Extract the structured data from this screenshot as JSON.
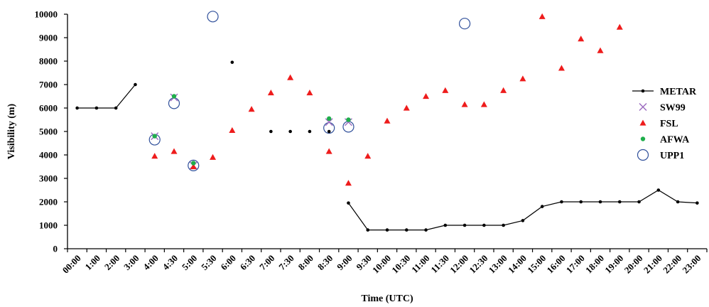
{
  "chart_data": {
    "type": "scatter",
    "xlabel": "Time (UTC)",
    "ylabel": "Visibility (m)",
    "ylim": [
      0,
      10000
    ],
    "yticks": [
      0,
      1000,
      2000,
      3000,
      4000,
      5000,
      6000,
      7000,
      8000,
      9000,
      10000
    ],
    "categories": [
      "00:00",
      "1:00",
      "2:00",
      "3:00",
      "4:00",
      "4:30",
      "5:00",
      "5:30",
      "6:00",
      "6:30",
      "7:00",
      "7:30",
      "8:00",
      "8:30",
      "9:00",
      "9:30",
      "10:00",
      "10:30",
      "11:00",
      "11:30",
      "12:00",
      "12:30",
      "13:00",
      "14:00",
      "15:00",
      "16:00",
      "17:00",
      "18:00",
      "19:00",
      "20:00",
      "21:00",
      "22:00",
      "23:00"
    ],
    "legend_position": "right",
    "grid": false,
    "series": [
      {
        "name": "METAR",
        "marker": "line-dot",
        "color": "#000000",
        "points": [
          {
            "x": 0,
            "y": 6000
          },
          {
            "x": 1,
            "y": 6000
          },
          {
            "x": 2,
            "y": 6000
          },
          {
            "x": 3,
            "y": 7000
          },
          {
            "x": 8,
            "y": 7950
          },
          {
            "x": 10,
            "y": 5000
          },
          {
            "x": 11,
            "y": 5000
          },
          {
            "x": 12,
            "y": 5000
          },
          {
            "x": 13,
            "y": 5000
          },
          {
            "x": 14,
            "y": 1950
          },
          {
            "x": 15,
            "y": 800
          },
          {
            "x": 16,
            "y": 800
          },
          {
            "x": 17,
            "y": 800
          },
          {
            "x": 18,
            "y": 800
          },
          {
            "x": 19,
            "y": 1000
          },
          {
            "x": 20,
            "y": 1000
          },
          {
            "x": 21,
            "y": 1000
          },
          {
            "x": 22,
            "y": 1000
          },
          {
            "x": 23,
            "y": 1200
          },
          {
            "x": 24,
            "y": 1800
          },
          {
            "x": 25,
            "y": 2000
          },
          {
            "x": 26,
            "y": 2000
          },
          {
            "x": 27,
            "y": 2000
          },
          {
            "x": 28,
            "y": 2000
          },
          {
            "x": 29,
            "y": 2000
          },
          {
            "x": 30,
            "y": 2500
          },
          {
            "x": 31,
            "y": 2000
          },
          {
            "x": 32,
            "y": 1950
          }
        ],
        "segments": [
          [
            0,
            3
          ],
          [
            9,
            27
          ]
        ]
      },
      {
        "name": "SW99",
        "marker": "x",
        "color": "#9b6bbf",
        "points": [
          {
            "x": 4,
            "y": 4800
          },
          {
            "x": 5,
            "y": 6450
          },
          {
            "x": 6,
            "y": 3550
          },
          {
            "x": 13,
            "y": 5400
          },
          {
            "x": 14,
            "y": 5400
          }
        ]
      },
      {
        "name": "FSL",
        "marker": "triangle",
        "color": "#ee1c1c",
        "points": [
          {
            "x": 4,
            "y": 3950
          },
          {
            "x": 5,
            "y": 4150
          },
          {
            "x": 6,
            "y": 3500
          },
          {
            "x": 7,
            "y": 3900
          },
          {
            "x": 8,
            "y": 5050
          },
          {
            "x": 9,
            "y": 5950
          },
          {
            "x": 10,
            "y": 6650
          },
          {
            "x": 11,
            "y": 7300
          },
          {
            "x": 12,
            "y": 6650
          },
          {
            "x": 13,
            "y": 4150
          },
          {
            "x": 14,
            "y": 2800
          },
          {
            "x": 15,
            "y": 3950
          },
          {
            "x": 16,
            "y": 5450
          },
          {
            "x": 17,
            "y": 6000
          },
          {
            "x": 18,
            "y": 6500
          },
          {
            "x": 19,
            "y": 6750
          },
          {
            "x": 20,
            "y": 6150
          },
          {
            "x": 21,
            "y": 6150
          },
          {
            "x": 22,
            "y": 6750
          },
          {
            "x": 23,
            "y": 7250
          },
          {
            "x": 24,
            "y": 9900
          },
          {
            "x": 25,
            "y": 7700
          },
          {
            "x": 26,
            "y": 8950
          },
          {
            "x": 27,
            "y": 8450
          },
          {
            "x": 28,
            "y": 9450
          }
        ]
      },
      {
        "name": "AFWA",
        "marker": "dot",
        "color": "#1fae4b",
        "points": [
          {
            "x": 4,
            "y": 4800
          },
          {
            "x": 5,
            "y": 6500
          },
          {
            "x": 6,
            "y": 3650
          },
          {
            "x": 13,
            "y": 5550
          },
          {
            "x": 14,
            "y": 5500
          }
        ]
      },
      {
        "name": "UPP1",
        "marker": "circle",
        "color": "#2f4f9a",
        "points": [
          {
            "x": 4,
            "y": 4650
          },
          {
            "x": 5,
            "y": 6200
          },
          {
            "x": 6,
            "y": 3550
          },
          {
            "x": 7,
            "y": 9900
          },
          {
            "x": 13,
            "y": 5150
          },
          {
            "x": 14,
            "y": 5200
          },
          {
            "x": 20,
            "y": 9600
          }
        ]
      }
    ]
  }
}
